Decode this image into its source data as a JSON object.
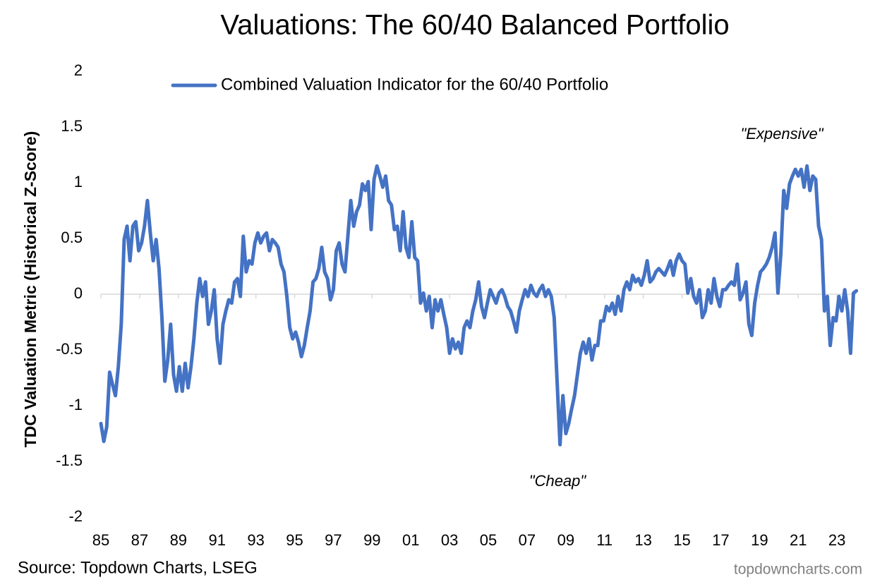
{
  "chart_data": {
    "type": "line",
    "title": "Valuations: The 60/40 Balanced Portfolio",
    "y_label": "TDC Valuation Metric (Historical Z-Score)",
    "source": "Source: Topdown Charts, LSEG",
    "watermark": "topdowncharts.com",
    "annotations": [
      "\"Expensive\"",
      "\"Cheap\""
    ],
    "xlim": [
      1985,
      2024
    ],
    "ylim": [
      -2,
      2
    ],
    "yticks": [
      -2,
      -1.5,
      -1,
      -0.5,
      0,
      0.5,
      1,
      1.5,
      2
    ],
    "xticks": [
      {
        "value": 1985,
        "label": "85"
      },
      {
        "value": 1987,
        "label": "87"
      },
      {
        "value": 1989,
        "label": "89"
      },
      {
        "value": 1991,
        "label": "91"
      },
      {
        "value": 1993,
        "label": "93"
      },
      {
        "value": 1995,
        "label": "95"
      },
      {
        "value": 1997,
        "label": "97"
      },
      {
        "value": 1999,
        "label": "99"
      },
      {
        "value": 2001,
        "label": "01"
      },
      {
        "value": 2003,
        "label": "03"
      },
      {
        "value": 2005,
        "label": "05"
      },
      {
        "value": 2007,
        "label": "07"
      },
      {
        "value": 2009,
        "label": "09"
      },
      {
        "value": 2011,
        "label": "11"
      },
      {
        "value": 2013,
        "label": "13"
      },
      {
        "value": 2015,
        "label": "15"
      },
      {
        "value": 2017,
        "label": "17"
      },
      {
        "value": 2019,
        "label": "19"
      },
      {
        "value": 2021,
        "label": "21"
      },
      {
        "value": 2023,
        "label": "23"
      }
    ],
    "x": [
      1985,
      1985.15,
      1985.3,
      1985.45,
      1985.6,
      1985.75,
      1985.9,
      1986.05,
      1986.2,
      1986.35,
      1986.5,
      1986.65,
      1986.8,
      1986.95,
      1987.1,
      1987.25,
      1987.4,
      1987.55,
      1987.7,
      1987.85,
      1988,
      1988.15,
      1988.3,
      1988.45,
      1988.6,
      1988.75,
      1988.9,
      1989.05,
      1989.2,
      1989.35,
      1989.5,
      1989.65,
      1989.8,
      1989.95,
      1990.1,
      1990.25,
      1990.4,
      1990.55,
      1990.7,
      1990.85,
      1991,
      1991.15,
      1991.3,
      1991.45,
      1991.6,
      1991.75,
      1991.9,
      1992.05,
      1992.2,
      1992.35,
      1992.5,
      1992.65,
      1992.8,
      1992.95,
      1993.1,
      1993.25,
      1993.4,
      1993.55,
      1993.7,
      1993.85,
      1994,
      1994.15,
      1994.3,
      1994.45,
      1994.6,
      1994.75,
      1994.9,
      1995.05,
      1995.2,
      1995.35,
      1995.5,
      1995.65,
      1995.8,
      1995.95,
      1996.1,
      1996.25,
      1996.4,
      1996.55,
      1996.7,
      1996.85,
      1997,
      1997.15,
      1997.3,
      1997.45,
      1997.6,
      1997.75,
      1997.9,
      1998.05,
      1998.2,
      1998.35,
      1998.5,
      1998.65,
      1998.8,
      1998.95,
      1999.1,
      1999.25,
      1999.4,
      1999.55,
      1999.7,
      1999.85,
      2000,
      2000.15,
      2000.3,
      2000.45,
      2000.6,
      2000.75,
      2000.9,
      2001.05,
      2001.2,
      2001.35,
      2001.5,
      2001.65,
      2001.8,
      2001.95,
      2002.1,
      2002.25,
      2002.4,
      2002.55,
      2002.7,
      2002.85,
      2003,
      2003.15,
      2003.3,
      2003.45,
      2003.6,
      2003.75,
      2003.9,
      2004.05,
      2004.2,
      2004.35,
      2004.5,
      2004.65,
      2004.8,
      2004.95,
      2005.1,
      2005.25,
      2005.4,
      2005.55,
      2005.7,
      2005.85,
      2006,
      2006.15,
      2006.3,
      2006.45,
      2006.6,
      2006.75,
      2006.9,
      2007.05,
      2007.2,
      2007.35,
      2007.5,
      2007.65,
      2007.8,
      2007.95,
      2008.1,
      2008.25,
      2008.4,
      2008.55,
      2008.7,
      2008.85,
      2009,
      2009.15,
      2009.3,
      2009.45,
      2009.6,
      2009.75,
      2009.9,
      2010.05,
      2010.2,
      2010.35,
      2010.5,
      2010.65,
      2010.8,
      2010.95,
      2011.1,
      2011.25,
      2011.4,
      2011.55,
      2011.7,
      2011.85,
      2012,
      2012.15,
      2012.3,
      2012.45,
      2012.6,
      2012.75,
      2012.9,
      2013.05,
      2013.2,
      2013.35,
      2013.5,
      2013.65,
      2013.8,
      2013.95,
      2014.1,
      2014.25,
      2014.4,
      2014.55,
      2014.7,
      2014.85,
      2015,
      2015.15,
      2015.3,
      2015.45,
      2015.6,
      2015.75,
      2015.9,
      2016.05,
      2016.2,
      2016.35,
      2016.5,
      2016.65,
      2016.8,
      2016.95,
      2017.1,
      2017.25,
      2017.4,
      2017.55,
      2017.7,
      2017.85,
      2018,
      2018.15,
      2018.3,
      2018.45,
      2018.6,
      2018.75,
      2018.9,
      2019.05,
      2019.2,
      2019.35,
      2019.5,
      2019.65,
      2019.8,
      2019.95,
      2020.1,
      2020.25,
      2020.4,
      2020.55,
      2020.7,
      2020.85,
      2021,
      2021.15,
      2021.3,
      2021.45,
      2021.6,
      2021.75,
      2021.9,
      2022.05,
      2022.2,
      2022.35,
      2022.5,
      2022.65,
      2022.8,
      2022.95,
      2023.1,
      2023.25,
      2023.4,
      2023.55,
      2023.7,
      2023.85,
      2024
    ],
    "series": [
      {
        "name": "Combined Valuation Indicator for the 60/40 Portfolio",
        "color": "#4472c4",
        "values": [
          -1.16,
          -1.32,
          -1.19,
          -0.7,
          -0.81,
          -0.91,
          -0.65,
          -0.27,
          0.49,
          0.61,
          0.3,
          0.61,
          0.65,
          0.39,
          0.46,
          0.61,
          0.84,
          0.55,
          0.3,
          0.49,
          0.23,
          -0.21,
          -0.78,
          -0.59,
          -0.27,
          -0.72,
          -0.87,
          -0.65,
          -0.87,
          -0.62,
          -0.84,
          -0.65,
          -0.4,
          -0.08,
          0.14,
          -0.02,
          0.11,
          -0.27,
          -0.15,
          0.04,
          -0.4,
          -0.62,
          -0.27,
          -0.15,
          -0.05,
          -0.08,
          0.11,
          0.14,
          -0.02,
          0.52,
          0.2,
          0.3,
          0.27,
          0.46,
          0.55,
          0.46,
          0.52,
          0.55,
          0.39,
          0.49,
          0.46,
          0.42,
          0.27,
          0.2,
          -0.02,
          -0.3,
          -0.4,
          -0.34,
          -0.43,
          -0.56,
          -0.46,
          -0.3,
          -0.15,
          0.11,
          0.14,
          0.23,
          0.42,
          0.2,
          0.14,
          -0.05,
          0.04,
          0.39,
          0.46,
          0.27,
          0.2,
          0.52,
          0.84,
          0.61,
          0.74,
          0.8,
          0.99,
          0.93,
          1.01,
          0.58,
          1.03,
          1.15,
          1.06,
          0.96,
          1.06,
          0.84,
          0.8,
          0.58,
          0.61,
          0.39,
          0.74,
          0.42,
          0.33,
          0.65,
          0.33,
          0.3,
          -0.08,
          0.01,
          -0.15,
          -0.02,
          -0.3,
          -0.05,
          -0.15,
          -0.05,
          -0.18,
          -0.3,
          -0.53,
          -0.4,
          -0.49,
          -0.43,
          -0.53,
          -0.3,
          -0.24,
          -0.3,
          -0.15,
          -0.05,
          0.11,
          -0.11,
          -0.21,
          -0.08,
          0.04,
          -0.02,
          -0.08,
          0.01,
          0.04,
          -0.02,
          -0.11,
          -0.15,
          -0.24,
          -0.34,
          -0.15,
          -0.05,
          0.04,
          -0.02,
          0.08,
          0.01,
          -0.02,
          0.04,
          0.08,
          -0.02,
          0.04,
          -0.02,
          -0.21,
          -0.78,
          -1.35,
          -0.91,
          -1.25,
          -1.16,
          -1.03,
          -0.91,
          -0.72,
          -0.53,
          -0.43,
          -0.53,
          -0.4,
          -0.59,
          -0.46,
          -0.46,
          -0.24,
          -0.24,
          -0.11,
          -0.15,
          -0.08,
          -0.18,
          -0.02,
          -0.15,
          0.04,
          0.11,
          0.04,
          0.17,
          0.11,
          0.14,
          0.08,
          0.17,
          0.3,
          0.11,
          0.14,
          0.2,
          0.23,
          0.2,
          0.17,
          0.23,
          0.3,
          0.17,
          0.3,
          0.36,
          0.3,
          0.27,
          0.01,
          0.14,
          -0.02,
          -0.08,
          0.04,
          -0.21,
          -0.15,
          0.04,
          -0.08,
          0.14,
          -0.02,
          -0.11,
          0.04,
          0.04,
          0.08,
          0.11,
          0.08,
          0.27,
          -0.05,
          0.01,
          0.11,
          -0.27,
          -0.37,
          -0.08,
          0.08,
          0.2,
          0.23,
          0.27,
          0.33,
          0.42,
          0.55,
          0.01,
          0.36,
          0.93,
          0.77,
          0.99,
          1.06,
          1.12,
          1.06,
          1.12,
          0.96,
          1.15,
          0.93,
          1.06,
          1.03,
          0.61,
          0.49,
          -0.15,
          -0.02,
          -0.46,
          -0.21,
          -0.24,
          -0.02,
          -0.15,
          0.04,
          -0.15,
          -0.53,
          0.01,
          0.03
        ]
      }
    ]
  }
}
